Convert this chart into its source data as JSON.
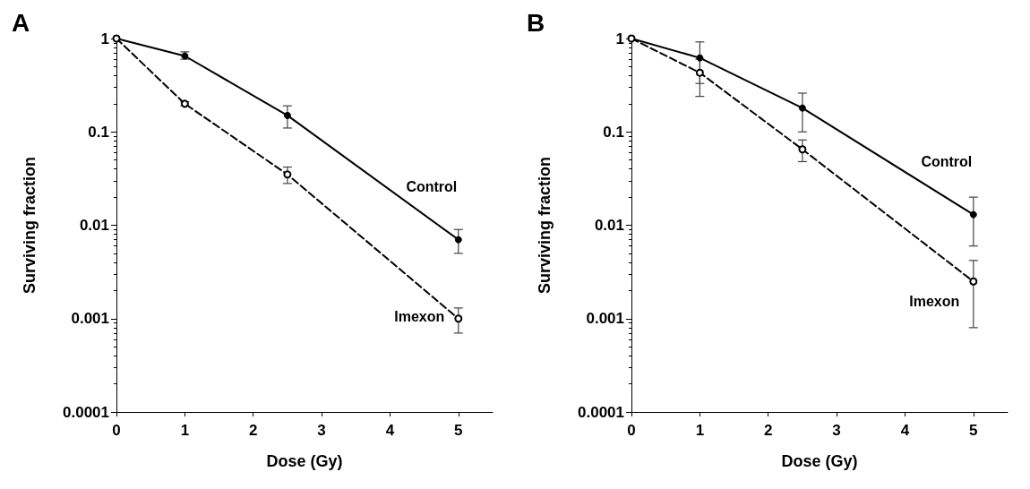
{
  "chart_data": [
    {
      "type": "line",
      "title": "A",
      "xlabel": "Dose (Gy)",
      "ylabel": "Surviving fraction",
      "x": [
        0,
        1,
        2.5,
        5
      ],
      "log": "y",
      "grid": false,
      "legend": false,
      "marker": "circle",
      "xlim": [
        0,
        5.5
      ],
      "xticks": [
        0,
        1,
        2,
        3,
        4,
        5
      ],
      "ylim": [
        0.0001,
        1
      ],
      "yticks": [
        0.0001,
        0.001,
        0.01,
        0.1,
        1
      ],
      "series": [
        {
          "name": "Control",
          "color": "#000000",
          "line_style": "solid",
          "values": [
            1,
            0.65,
            0.15,
            0.007
          ],
          "errors": [
            null,
            [
              0.6,
              0.72
            ],
            [
              0.11,
              0.19
            ],
            [
              0.005,
              0.009
            ]
          ]
        },
        {
          "name": "Imexon",
          "color": "#000000",
          "line_style": "dashed",
          "values": [
            1,
            0.2,
            0.035,
            0.001
          ],
          "errors": [
            null,
            [
              0.19,
              0.21
            ],
            [
              0.028,
              0.042
            ],
            [
              0.0007,
              0.0013
            ]
          ]
        }
      ]
    },
    {
      "type": "line",
      "title": "B",
      "xlabel": "Dose (Gy)",
      "ylabel": "Surviving fraction",
      "x": [
        0,
        1,
        2.5,
        5
      ],
      "log": "y",
      "grid": false,
      "legend": false,
      "marker": "circle",
      "xlim": [
        0,
        5.5
      ],
      "xticks": [
        0,
        1,
        2,
        3,
        4,
        5
      ],
      "ylim": [
        0.0001,
        1
      ],
      "yticks": [
        0.0001,
        0.001,
        0.01,
        0.1,
        1
      ],
      "series": [
        {
          "name": "Control",
          "color": "#000000",
          "line_style": "solid",
          "values": [
            1,
            0.62,
            0.18,
            0.013
          ],
          "errors": [
            null,
            [
              0.33,
              0.92
            ],
            [
              0.1,
              0.26
            ],
            [
              0.006,
              0.02
            ]
          ]
        },
        {
          "name": "Imexon",
          "color": "#000000",
          "line_style": "dashed",
          "values": [
            1,
            0.43,
            0.065,
            0.0025
          ],
          "errors": [
            null,
            [
              0.24,
              0.6
            ],
            [
              0.048,
              0.082
            ],
            [
              0.0008,
              0.0042
            ]
          ]
        }
      ]
    }
  ]
}
